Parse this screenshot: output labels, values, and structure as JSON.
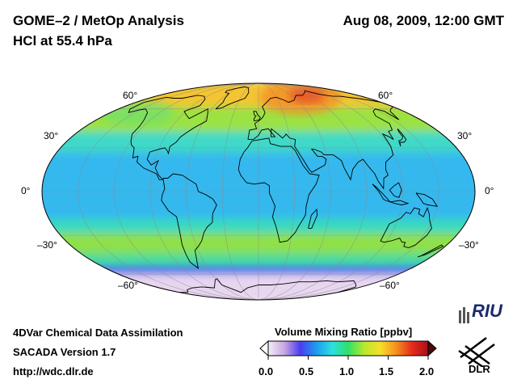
{
  "header": {
    "title_line1": "GOME–2 / MetOp Analysis",
    "title_line2": "HCl at 55.4 hPa",
    "datetime": "Aug 08, 2009, 12:00 GMT"
  },
  "map": {
    "projection": "Mollweide",
    "latitude_labels": {
      "left": [
        "60°",
        "30°",
        "0°",
        "–30°",
        "–60°"
      ],
      "right": [
        "60°",
        "30°",
        "0°",
        "–30°",
        "–60°"
      ]
    },
    "field_bands": [
      {
        "lat_from": 90,
        "lat_to": 60,
        "ppbv": 1.4,
        "color": "#f4c531"
      },
      {
        "lat_from": 60,
        "lat_to": 40,
        "ppbv": 1.1,
        "color": "#9be243"
      },
      {
        "lat_from": 40,
        "lat_to": 25,
        "ppbv": 0.75,
        "color": "#3fd9c8"
      },
      {
        "lat_from": 25,
        "lat_to": -20,
        "ppbv": 0.6,
        "color": "#35b8ee"
      },
      {
        "lat_from": -20,
        "lat_to": -30,
        "ppbv": 0.8,
        "color": "#38d9c0"
      },
      {
        "lat_from": -30,
        "lat_to": -45,
        "ppbv": 1.1,
        "color": "#8fe04a"
      },
      {
        "lat_from": -45,
        "lat_to": -55,
        "ppbv": 0.9,
        "color": "#4bdc9c"
      },
      {
        "lat_from": -55,
        "lat_to": -62,
        "ppbv": 0.5,
        "color": "#2f5cf0"
      },
      {
        "lat_from": -62,
        "lat_to": -90,
        "ppbv": 0.05,
        "color": "#e8d6f0"
      }
    ]
  },
  "colorbar": {
    "title": "Volume Mixing Ratio [ppbv]",
    "ticks": [
      "0.0",
      "0.5",
      "1.0",
      "1.5",
      "2.0"
    ],
    "colors": [
      "#f4eef8",
      "#c9a8e0",
      "#4b3cf0",
      "#1e9bf0",
      "#2de0e0",
      "#2fe06a",
      "#b8e82c",
      "#f5e02a",
      "#f5901e",
      "#e62a1c",
      "#a8101a"
    ]
  },
  "footer": {
    "line1": "4DVar Chemical Data Assimilation",
    "line2": "SACADA Version 1.7",
    "line3": "http://wdc.dlr.de"
  },
  "logos": {
    "riu": "RIU",
    "dlr": "DLR"
  }
}
